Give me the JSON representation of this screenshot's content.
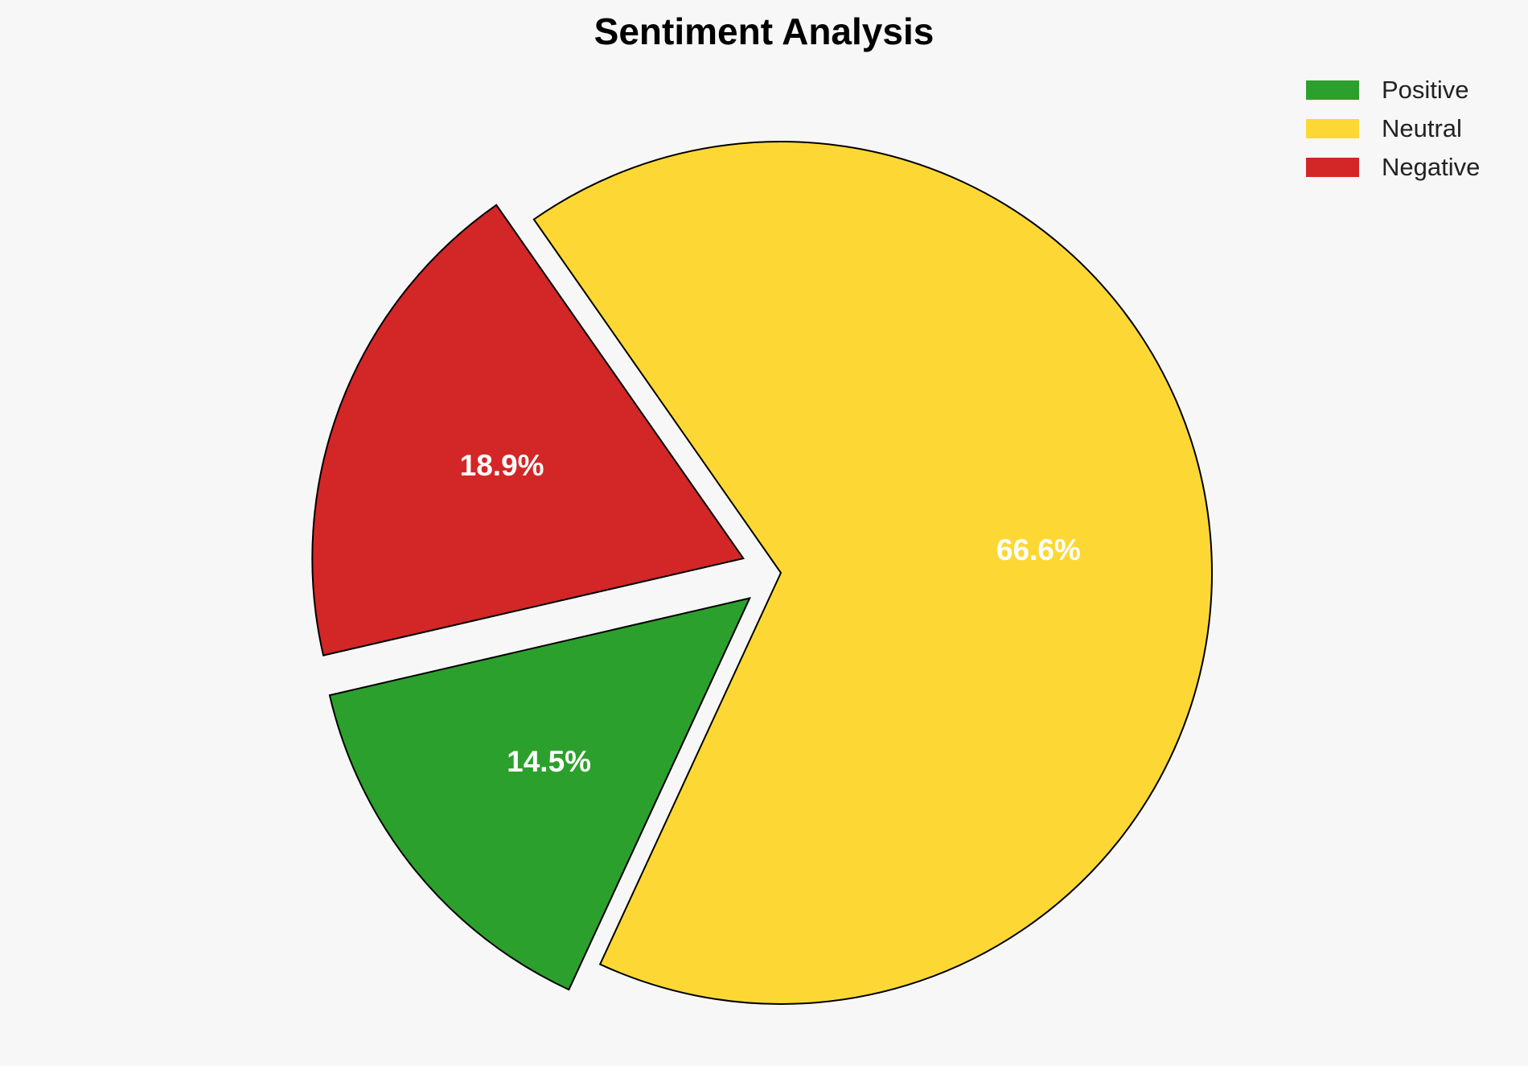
{
  "chart_data": {
    "type": "pie",
    "title": "Sentiment Analysis",
    "categories": [
      "Positive",
      "Neutral",
      "Negative"
    ],
    "values": [
      14.5,
      66.6,
      18.9
    ],
    "labels": [
      "14.5%",
      "66.6%",
      "18.9%"
    ],
    "colors": [
      "#2ca02c",
      "#fdd835",
      "#d32626"
    ],
    "exploded": [
      true,
      false,
      true
    ],
    "legend_position": "top-right",
    "start_angle_deg": 193
  }
}
